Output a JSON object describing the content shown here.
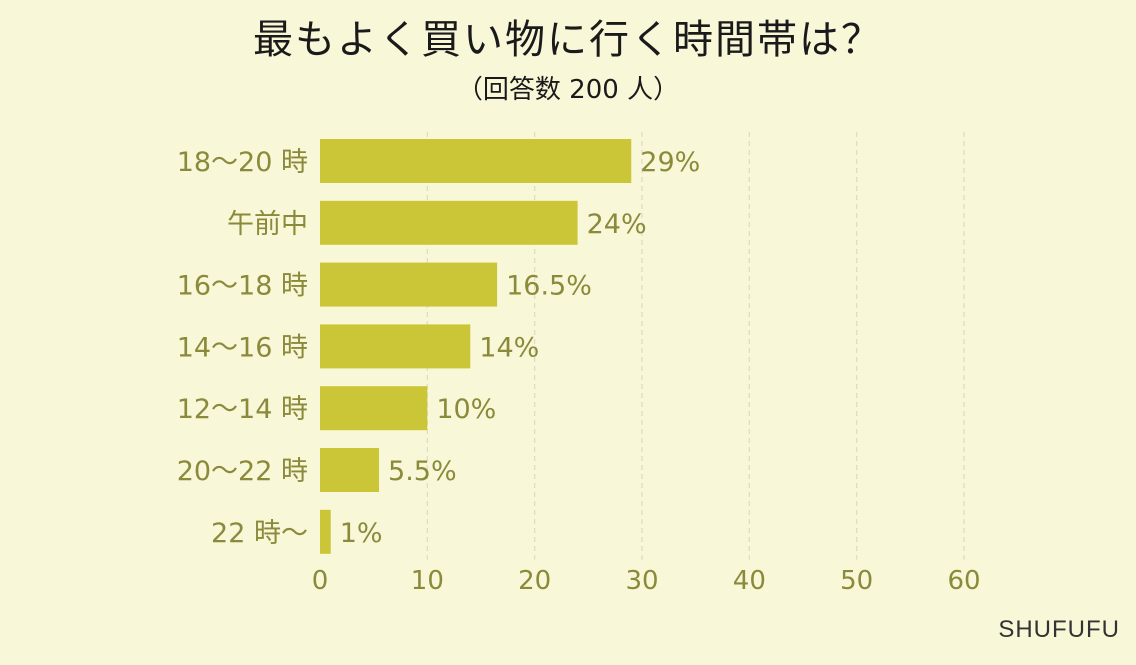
{
  "title": "最もよく買い物に行く時間帯は？",
  "subtitle": "（回答数 200 人）",
  "brand": "SHUFUFU",
  "colors": {
    "background": "#f8f7d8",
    "bar": "#cbc637",
    "label": "#8a8a3a",
    "grid": "#dcdcc6"
  },
  "chart_data": {
    "type": "bar",
    "orientation": "horizontal",
    "categories": [
      "18～20 時",
      "午前中",
      "16～18 時",
      "14～16 時",
      "12～14 時",
      "20～22 時",
      "22 時～"
    ],
    "values": [
      29,
      24,
      16.5,
      14,
      10,
      5.5,
      1
    ],
    "value_labels": [
      "29%",
      "24%",
      "16.5%",
      "14%",
      "10%",
      "5.5%",
      "1%"
    ],
    "xlim": [
      0,
      60
    ],
    "xticks": [
      "0",
      "10",
      "20",
      "30",
      "40",
      "50",
      "60"
    ],
    "grid": "vertical dashed",
    "legend": "none"
  }
}
